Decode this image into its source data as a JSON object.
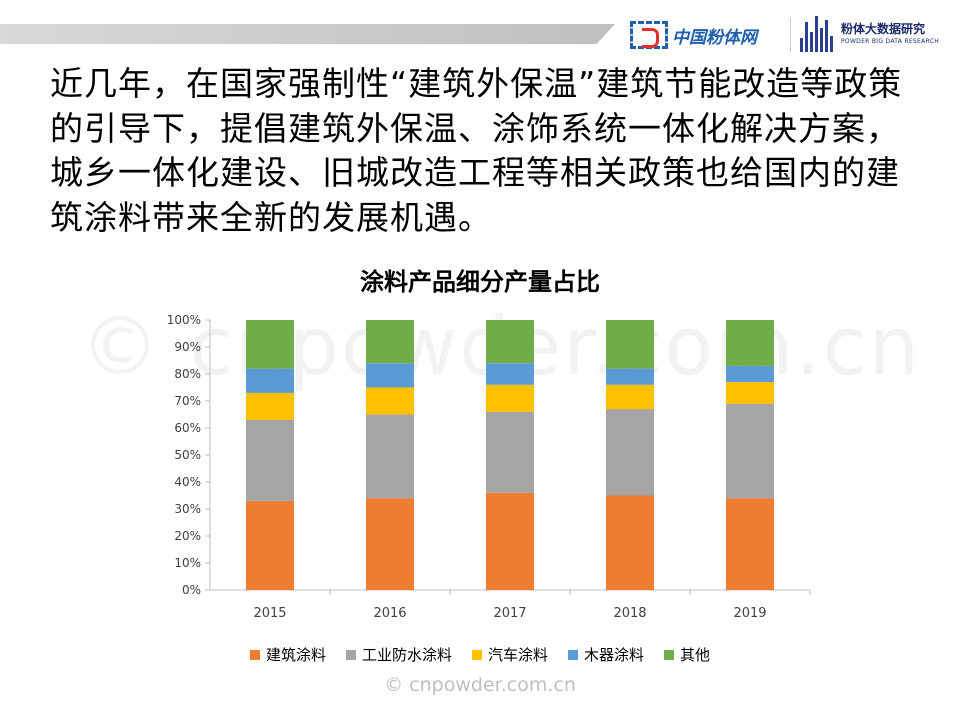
{
  "header": {
    "logo1_text": "中国粉体网",
    "logo2_cn": "粉体大数据研究",
    "logo2_en": "POWDER BIG DATA RESEARCH"
  },
  "paragraph": "近几年，在国家强制性“建筑外保温”建筑节能改造等政策的引导下，提倡建筑外保温、涂饰系统一体化解决方案，城乡一体化建设、旧城改造工程等相关政策也给国内的建筑涂料带来全新的发展机遇。",
  "watermark": "© cnpowder.com.cn",
  "copyright": "© cnpowder.com.cn",
  "chart_data": {
    "type": "bar",
    "stacked": true,
    "title": "涂料产品细分产量占比",
    "categories": [
      "2015",
      "2016",
      "2017",
      "2018",
      "2019"
    ],
    "yticks": [
      "0%",
      "10%",
      "20%",
      "30%",
      "40%",
      "50%",
      "60%",
      "70%",
      "80%",
      "90%",
      "100%"
    ],
    "ylim": [
      0,
      100
    ],
    "grid": false,
    "legend_position": "bottom",
    "series": [
      {
        "name": "建筑涂料",
        "color": "#ed7d31",
        "values": [
          33,
          34,
          36,
          35,
          34
        ]
      },
      {
        "name": "工业防水涂料",
        "color": "#a5a5a5",
        "values": [
          30,
          31,
          30,
          32,
          35
        ]
      },
      {
        "name": "汽车涂料",
        "color": "#ffc000",
        "values": [
          10,
          10,
          10,
          9,
          8
        ]
      },
      {
        "name": "木器涂料",
        "color": "#5b9bd5",
        "values": [
          9,
          9,
          8,
          6,
          6
        ]
      },
      {
        "name": "其他",
        "color": "#70ad47",
        "values": [
          18,
          16,
          16,
          18,
          17
        ]
      }
    ]
  }
}
